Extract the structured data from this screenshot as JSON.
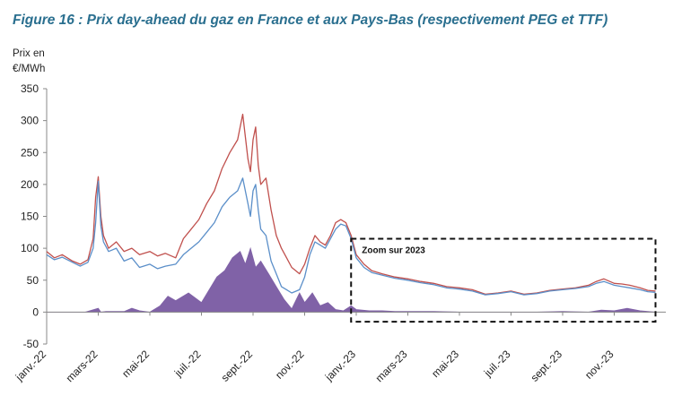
{
  "title": "Figure 16 : Prix day-ahead du gaz en France et aux Pays-Bas (respectivement PEG et TTF)",
  "chart_data": {
    "type": "line",
    "ylabel_lines": [
      "Prix en",
      "€/MWh"
    ],
    "ylim": [
      -50,
      350
    ],
    "yticks": [
      -50,
      0,
      50,
      100,
      150,
      200,
      250,
      300,
      350
    ],
    "xlim": [
      0,
      24
    ],
    "x_tick_labels": [
      "janv.-22",
      "mars-22",
      "mai-22",
      "juil.-22",
      "sept.-22",
      "nov.-22",
      "janv.-23",
      "mars-23",
      "mai-23",
      "juil.-23",
      "sept.-23",
      "nov.-23"
    ],
    "x_tick_positions": [
      0,
      2,
      4,
      6,
      8,
      10,
      12,
      14,
      16,
      18,
      20,
      22
    ],
    "grid": false,
    "annotation": {
      "text": "Zoom sur 2023",
      "x_range": [
        11.8,
        23.6
      ],
      "y_range": [
        -15,
        115
      ]
    },
    "series": [
      {
        "color": "#c0504d",
        "kind": "line",
        "x": [
          0,
          0.3,
          0.6,
          1,
          1.3,
          1.6,
          1.8,
          1.9,
          2.0,
          2.1,
          2.2,
          2.4,
          2.7,
          3.0,
          3.3,
          3.6,
          4.0,
          4.3,
          4.6,
          5.0,
          5.3,
          5.6,
          5.9,
          6.2,
          6.5,
          6.8,
          7.1,
          7.4,
          7.6,
          7.8,
          7.9,
          8.0,
          8.1,
          8.2,
          8.3,
          8.5,
          8.7,
          8.9,
          9.1,
          9.3,
          9.5,
          9.8,
          10.0,
          10.2,
          10.4,
          10.6,
          10.8,
          11.0,
          11.2,
          11.4,
          11.6,
          11.8,
          12.0,
          12.3,
          12.6,
          13.0,
          13.5,
          14.0,
          14.5,
          15.0,
          15.5,
          16.0,
          16.5,
          17.0,
          17.5,
          18.0,
          18.5,
          19.0,
          19.5,
          20.0,
          20.5,
          21.0,
          21.3,
          21.6,
          22.0,
          22.3,
          22.6,
          23.0,
          23.3,
          23.6
        ],
        "y": [
          95,
          85,
          90,
          80,
          75,
          82,
          115,
          180,
          212,
          150,
          120,
          100,
          110,
          95,
          100,
          90,
          95,
          88,
          92,
          85,
          115,
          130,
          145,
          170,
          190,
          225,
          250,
          270,
          310,
          240,
          220,
          270,
          290,
          230,
          200,
          210,
          160,
          120,
          100,
          85,
          70,
          60,
          75,
          100,
          120,
          110,
          105,
          120,
          140,
          145,
          140,
          120,
          90,
          75,
          65,
          60,
          55,
          52,
          48,
          45,
          40,
          38,
          35,
          28,
          30,
          33,
          28,
          30,
          34,
          36,
          38,
          42,
          48,
          52,
          45,
          44,
          42,
          38,
          34,
          33
        ]
      },
      {
        "color": "#5b8fc9",
        "kind": "line",
        "x": [
          0,
          0.3,
          0.6,
          1,
          1.3,
          1.6,
          1.8,
          1.9,
          2.0,
          2.1,
          2.2,
          2.4,
          2.7,
          3.0,
          3.3,
          3.6,
          4.0,
          4.3,
          4.6,
          5.0,
          5.3,
          5.6,
          5.9,
          6.2,
          6.5,
          6.8,
          7.1,
          7.4,
          7.6,
          7.8,
          7.9,
          8.0,
          8.1,
          8.2,
          8.3,
          8.5,
          8.7,
          8.9,
          9.1,
          9.3,
          9.5,
          9.8,
          10.0,
          10.2,
          10.4,
          10.6,
          10.8,
          11.0,
          11.2,
          11.4,
          11.6,
          11.8,
          12.0,
          12.3,
          12.6,
          13.0,
          13.5,
          14.0,
          14.5,
          15.0,
          15.5,
          16.0,
          16.5,
          17.0,
          17.5,
          18.0,
          18.5,
          19.0,
          19.5,
          20.0,
          20.5,
          21.0,
          21.3,
          21.6,
          22.0,
          22.3,
          22.6,
          23.0,
          23.3,
          23.6
        ],
        "y": [
          90,
          82,
          86,
          78,
          72,
          78,
          100,
          140,
          205,
          135,
          110,
          95,
          100,
          80,
          85,
          70,
          75,
          68,
          72,
          75,
          90,
          100,
          110,
          125,
          140,
          165,
          180,
          190,
          210,
          170,
          150,
          190,
          200,
          160,
          130,
          120,
          80,
          60,
          40,
          35,
          30,
          35,
          55,
          90,
          110,
          105,
          100,
          115,
          130,
          138,
          135,
          115,
          85,
          70,
          62,
          58,
          53,
          50,
          46,
          43,
          38,
          36,
          33,
          27,
          29,
          32,
          27,
          29,
          33,
          35,
          37,
          40,
          45,
          48,
          42,
          40,
          38,
          35,
          32,
          31
        ]
      },
      {
        "color": "#7a5aa3",
        "kind": "area",
        "x": [
          0,
          1.5,
          2.0,
          2.1,
          2.3,
          3.0,
          3.3,
          3.6,
          4.0,
          4.4,
          4.7,
          5.0,
          5.5,
          6.0,
          6.3,
          6.6,
          6.9,
          7.2,
          7.5,
          7.7,
          7.9,
          8.1,
          8.3,
          8.6,
          8.9,
          9.2,
          9.5,
          9.8,
          10.0,
          10.3,
          10.6,
          10.9,
          11.2,
          11.5,
          11.8,
          12.0,
          12.5,
          13.0,
          13.5,
          14.0,
          15.0,
          16.0,
          17.0,
          18.0,
          19.0,
          20.0,
          21.0,
          21.5,
          22.0,
          22.5,
          23.0,
          23.6
        ],
        "y": [
          0,
          0,
          6,
          0,
          1,
          1,
          6,
          2,
          0,
          10,
          25,
          18,
          30,
          15,
          35,
          55,
          65,
          85,
          95,
          75,
          100,
          70,
          80,
          60,
          40,
          20,
          5,
          30,
          15,
          30,
          10,
          15,
          4,
          2,
          10,
          4,
          2,
          2,
          1,
          1,
          1,
          0,
          0,
          0,
          0,
          1,
          0,
          3,
          2,
          6,
          2,
          0
        ]
      }
    ]
  }
}
